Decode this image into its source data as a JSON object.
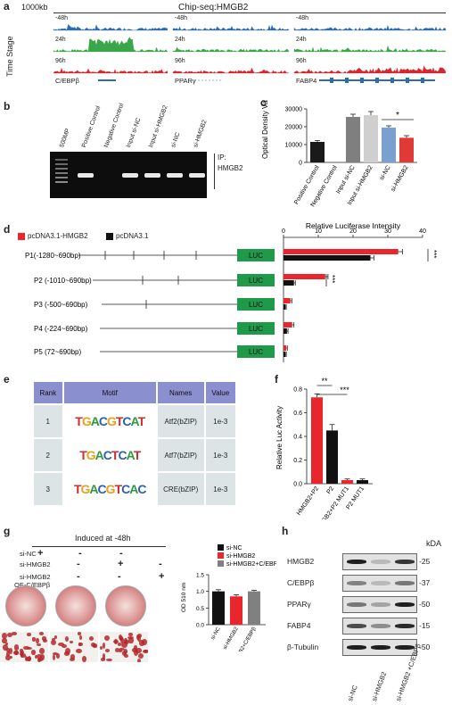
{
  "panel_a": {
    "label": "a",
    "scale": "1000kb",
    "title": "Chip-seq:HMGB2",
    "yaxis": "Time Stage",
    "tracks": [
      {
        "time": "-48h",
        "color": "#2a6db2"
      },
      {
        "time": "24h",
        "color": "#3aa64a"
      },
      {
        "time": "96h",
        "color": "#d8262f"
      }
    ],
    "genes": [
      "C/EBPβ",
      "PPARγ",
      "FABP4"
    ]
  },
  "panel_b": {
    "label": "b",
    "lanes": [
      "500MP",
      "Positive Control",
      "Negative Control",
      "Input si-NC",
      "Input si-HMGB2",
      "si-NC",
      "si-HMGB2"
    ],
    "ip_label": "IP:",
    "ip_target": "HMGB2"
  },
  "panel_c": {
    "label": "c",
    "chart_data": {
      "type": "bar",
      "categories": [
        "Positive Control",
        "Negative Control",
        "Input si-NC",
        "Input si-HMGB2",
        "si-NC",
        "si-HMGB2"
      ],
      "values": [
        11500,
        0,
        25500,
        26500,
        19500,
        13800
      ],
      "errors": [
        800,
        0,
        1500,
        2000,
        1000,
        1200
      ],
      "colors": [
        "#1a1a1a",
        "#1a1a1a",
        "#7f7f7f",
        "#cfcfcf",
        "#7aa0d0",
        "#e03a36"
      ],
      "ylabel": "Optical Density Value",
      "ylim": [
        0,
        30000
      ],
      "yticks": [
        0,
        10000,
        20000,
        30000
      ],
      "significance": "*"
    }
  },
  "panel_d": {
    "label": "d",
    "legend": [
      {
        "name": "pcDNA3.1-HMGB2",
        "color": "#e8262c"
      },
      {
        "name": "pcDNA3.1",
        "color": "#111111"
      }
    ],
    "luc_label": "LUC",
    "chart_data": {
      "type": "bar",
      "title": "Relative Luciferase Intensity",
      "categories": [
        "P1(-1280~690bp)",
        "P2 (-1010~690bp)",
        "P3 (-500~690bp)",
        "P4 (-224~690bp)",
        "P5 (72~690bp)"
      ],
      "series": [
        {
          "name": "pcDNA3.1-HMGB2",
          "values": [
            33,
            12,
            2,
            2.5,
            0.8
          ],
          "errors": [
            1.2,
            0.8,
            0.4,
            0.5,
            0.3
          ]
        },
        {
          "name": "pcDNA3.1",
          "values": [
            25,
            3,
            0.6,
            1.0,
            0.6
          ],
          "errors": [
            1.0,
            0.4,
            0.2,
            0.3,
            0.2
          ]
        }
      ],
      "xlim": [
        0,
        40
      ],
      "xticks": [
        0,
        10,
        20,
        30,
        40
      ],
      "significance": [
        "***",
        "***"
      ]
    }
  },
  "panel_e": {
    "label": "e",
    "headers": [
      "Rank",
      "Motif",
      "Names",
      "Value"
    ],
    "rows": [
      {
        "rank": "1",
        "motif": "TGACGTCAT",
        "name": "Atf2(bZIP)",
        "value": "1e-3"
      },
      {
        "rank": "2",
        "motif": "TGACTCAT",
        "name": "Atf7(bZIP)",
        "value": "1e-3"
      },
      {
        "rank": "3",
        "motif": "TGACGTCAC",
        "name": "CRE(bZIP)",
        "value": "1e-3"
      }
    ]
  },
  "panel_f": {
    "label": "f",
    "chart_data": {
      "type": "bar",
      "categories": [
        "HMGB2+P2",
        "P2",
        "HMGB2+P2 MUT1",
        "P2 MUT1"
      ],
      "values": [
        0.73,
        0.45,
        0.03,
        0.03
      ],
      "errors": [
        0.03,
        0.05,
        0.01,
        0.01
      ],
      "colors": [
        "#e8262c",
        "#111111",
        "#e8262c",
        "#111111"
      ],
      "ylabel": "Relative Luc Activity",
      "ylim": [
        0,
        0.8
      ],
      "yticks": [
        "0.0",
        "0.2",
        "0.4",
        "0.6",
        "0.8"
      ],
      "significance": [
        "**",
        "***"
      ]
    }
  },
  "panel_g": {
    "label": "g",
    "title": "Induced at -48h",
    "conditions": [
      {
        "name": "si-NC",
        "marks": [
          "+",
          "-",
          "-"
        ]
      },
      {
        "name": "si-HMGB2",
        "marks": [
          "-",
          "+",
          "-"
        ]
      },
      {
        "name": "si-HMGB2",
        "marks": [
          "-",
          "-",
          "+"
        ]
      },
      {
        "name": "OE-C/EBPβ",
        "marks": []
      }
    ],
    "chart_data": {
      "type": "bar",
      "categories": [
        "si-NC",
        "si-HMGB2",
        "si-HMGB2+C/EBPβ"
      ],
      "values": [
        1.0,
        0.85,
        1.0
      ],
      "errors": [
        0.05,
        0.05,
        0.03
      ],
      "colors": [
        "#111111",
        "#e8262c",
        "#808080"
      ],
      "ylabel": "OD 510 nm",
      "ylim": [
        0,
        1.5
      ],
      "yticks": [
        "0.0",
        "0.5",
        "1.0",
        "1.5"
      ],
      "legend": [
        "si-NC",
        "si-HMGB2",
        "si-HMGB2+C/EBPβ"
      ]
    }
  },
  "panel_h": {
    "label": "h",
    "unit": "kDA",
    "proteins": [
      {
        "name": "HMGB2",
        "kda": "25",
        "intensity": [
          0.95,
          0.25,
          0.85
        ]
      },
      {
        "name": "C/EBPβ",
        "kda": "37",
        "intensity": [
          0.5,
          0.25,
          0.55
        ]
      },
      {
        "name": "PPARγ",
        "kda": "50",
        "intensity": [
          0.55,
          0.35,
          0.95
        ]
      },
      {
        "name": "FABP4",
        "kda": "15",
        "intensity": [
          0.75,
          0.45,
          0.9
        ]
      },
      {
        "name": "β-Tubulin",
        "kda": "50",
        "intensity": [
          0.95,
          0.95,
          0.95
        ]
      }
    ],
    "lanes": [
      "si-NC",
      "si-HMGB2",
      "si-HMGB2 +C/EBPβ"
    ]
  }
}
